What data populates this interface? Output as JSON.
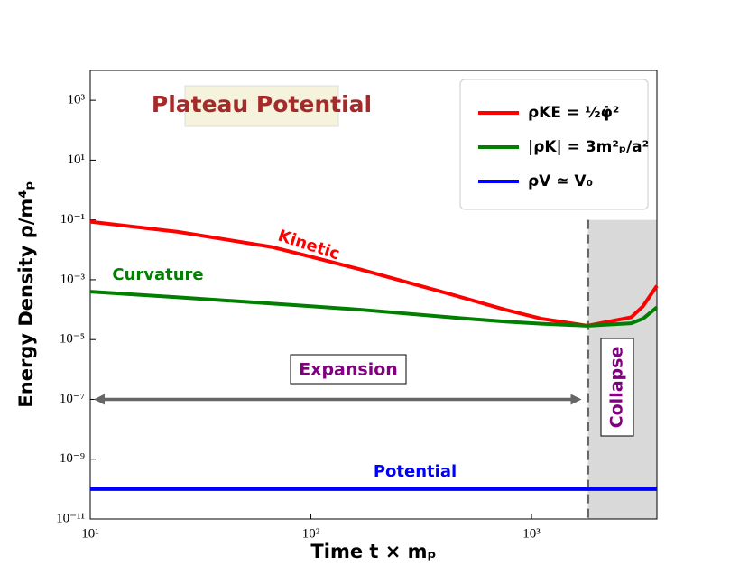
{
  "chart_data": {
    "type": "line",
    "title": "Plateau Potential",
    "xlabel": "Time t × mₚ",
    "ylabel": "Energy Density ρ/m⁴ₚ",
    "xscale": "log",
    "yscale": "log",
    "x": [
      10,
      25,
      66,
      100,
      168,
      435,
      760,
      1110,
      1790,
      2830,
      3200,
      3700
    ],
    "series": [
      {
        "name": "ρKE = ½φ̇²",
        "label": "Kinetic",
        "color": "#ff0000",
        "values": [
          0.087,
          0.04,
          0.0126,
          0.0059,
          0.0022,
          0.00032,
          0.0001,
          5e-05,
          2.9e-05,
          5.6e-05,
          0.00013,
          0.00063
        ]
      },
      {
        "name": "|ρK| = 3m²ₚ/a²",
        "label": "Curvature",
        "color": "#007f00",
        "values": [
          0.0004,
          0.00026,
          0.00016,
          0.00013,
          0.0001,
          5.5e-05,
          4e-05,
          3.4e-05,
          2.9e-05,
          3.5e-05,
          5e-05,
          0.00012
        ]
      },
      {
        "name": "ρV ≃ V₀",
        "label": "Potential",
        "color": "#0000ff",
        "values": [
          1e-10,
          1e-10,
          1e-10,
          1e-10,
          1e-10,
          1e-10,
          1e-10,
          1e-10,
          1e-10,
          1e-10,
          1e-10,
          1e-10
        ]
      }
    ],
    "xlim": [
      10,
      3700
    ],
    "ylim": [
      1e-11,
      10000
    ],
    "xticks": [
      {
        "value": 10,
        "label": "10¹"
      },
      {
        "value": 100,
        "label": "10²"
      },
      {
        "value": 1000,
        "label": "10³"
      }
    ],
    "yticks": [
      {
        "value": 1e-11,
        "label": "10⁻¹¹"
      },
      {
        "value": 1e-09,
        "label": "10⁻⁹"
      },
      {
        "value": 1e-07,
        "label": "10⁻⁷"
      },
      {
        "value": 1e-05,
        "label": "10⁻⁵"
      },
      {
        "value": 0.001,
        "label": "10⁻³"
      },
      {
        "value": 0.1,
        "label": "10⁻¹"
      },
      {
        "value": 10,
        "label": "10¹"
      },
      {
        "value": 1000,
        "label": "10³"
      }
    ],
    "legend": "upper right",
    "expansion": {
      "label": "Expansion",
      "xlim": [
        10,
        1750
      ],
      "y": 1e-07
    },
    "collapse": {
      "label": "Collapse",
      "xlim": [
        1800,
        3700
      ]
    }
  }
}
